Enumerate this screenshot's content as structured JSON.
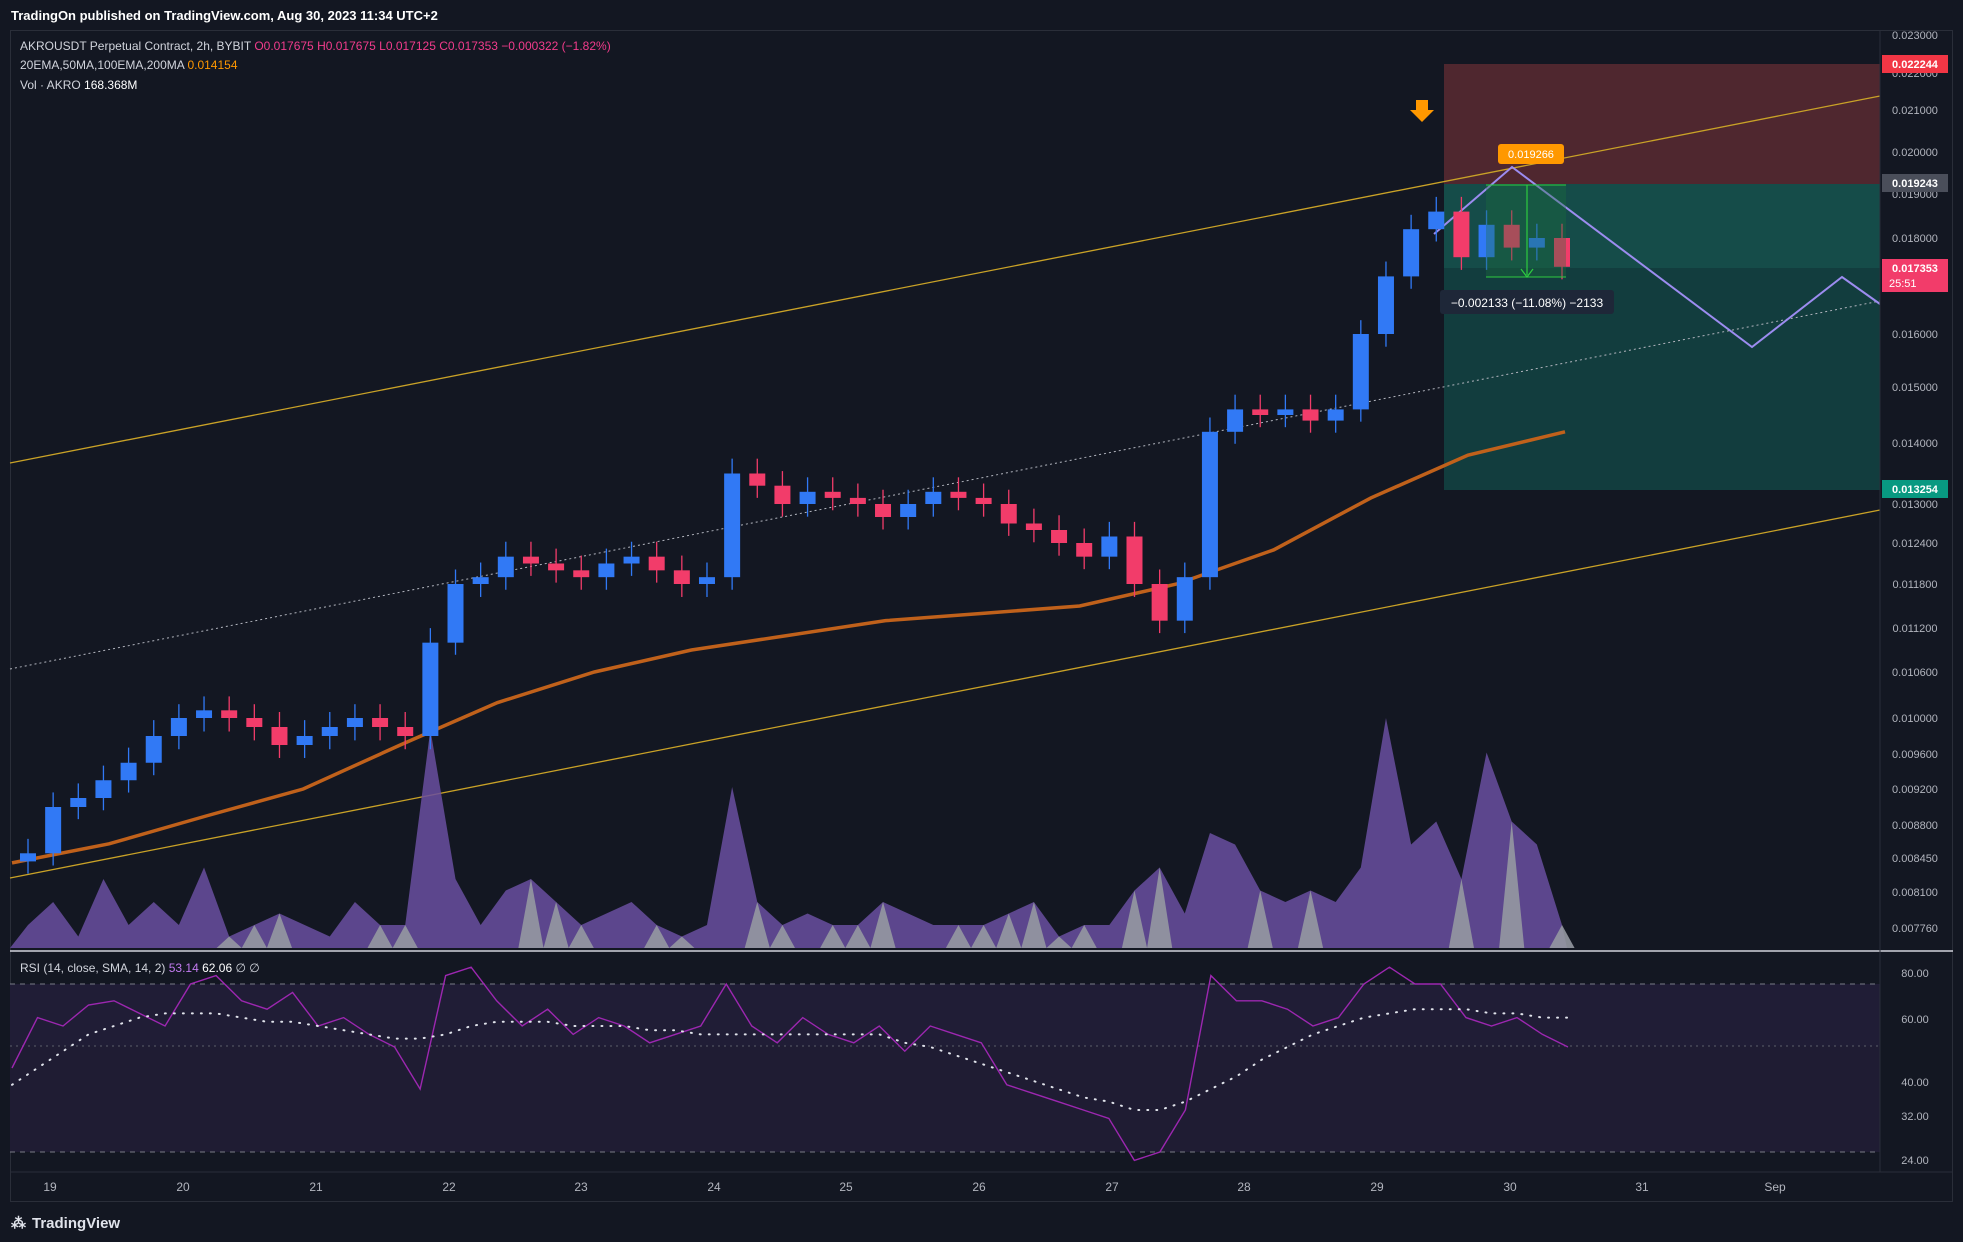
{
  "header": {
    "published": "TradingOn published on TradingView.com, Aug 30, 2023 11:34 UTC+2"
  },
  "legend": {
    "symbol": "AKROUSDT Perpetual Contract, 2h, BYBIT",
    "open": "O0.017675",
    "high": "H0.017675",
    "low": "L0.017125",
    "close": "C0.017353",
    "change": "−0.000322 (−1.82%)",
    "ma_label": "20EMA,50MA,100EMA,200MA",
    "ma_value": "0.014154",
    "vol_label": "Vol · AKRO",
    "vol_value": "168.368M"
  },
  "rsi_legend": {
    "label": "RSI (14, close, SMA, 14, 2)",
    "rsi": "53.14",
    "sma": "62.06",
    "extra": "∅  ∅"
  },
  "price_axis": [
    "0.023000",
    "0.022000",
    "0.021000",
    "0.020000",
    "0.019000",
    "0.018000",
    "0.016000",
    "0.015000",
    "0.014000",
    "0.013000",
    "0.012400",
    "0.011800",
    "0.011200",
    "0.010600",
    "0.010000",
    "0.009600",
    "0.009200",
    "0.008800",
    "0.008450",
    "0.008100",
    "0.007760"
  ],
  "price_tags": {
    "stop": "0.022244",
    "entry": "0.019243",
    "last": "0.017353",
    "countdown": "25:51",
    "target": "0.013254"
  },
  "annotations": {
    "high_label": "0.019266",
    "measure_label": "−0.002133 (−11.08%) −2133"
  },
  "rsi_axis": [
    "80.00",
    "60.00",
    "40.00",
    "32.00",
    "24.00"
  ],
  "time_axis": [
    "19",
    "20",
    "21",
    "22",
    "23",
    "24",
    "25",
    "26",
    "27",
    "28",
    "29",
    "30",
    "31",
    "Sep"
  ],
  "footer": {
    "brand": "TradingView"
  },
  "colors": {
    "bg": "#131722",
    "up": "#3179f5",
    "down": "#f23c6a",
    "ma": "#c0611b",
    "channel": "#c9a227",
    "stop_zone": "#5b2a31",
    "target_zone": "#123f40",
    "rsi": "#9c27b0"
  },
  "chart_data": {
    "type": "candlestick",
    "timeframe": "2h",
    "x_range": [
      "Aug 19",
      "Sep 1"
    ],
    "ylim": [
      0.0076,
      0.0232
    ],
    "candles_close_approx": [
      0.0085,
      0.009,
      0.0091,
      0.0093,
      0.0095,
      0.0098,
      0.01,
      0.0101,
      0.01,
      0.0099,
      0.0097,
      0.0098,
      0.0099,
      0.01,
      0.0099,
      0.0098,
      0.011,
      0.0118,
      0.0119,
      0.0122,
      0.0121,
      0.012,
      0.0119,
      0.0121,
      0.0122,
      0.012,
      0.0118,
      0.0119,
      0.0135,
      0.0133,
      0.013,
      0.0132,
      0.0131,
      0.013,
      0.0128,
      0.013,
      0.0132,
      0.0131,
      0.013,
      0.0127,
      0.0126,
      0.0124,
      0.0122,
      0.0125,
      0.0118,
      0.0113,
      0.0119,
      0.0142,
      0.0146,
      0.0145,
      0.0146,
      0.0144,
      0.0146,
      0.016,
      0.0172,
      0.0182,
      0.0186,
      0.0176,
      0.0183,
      0.0178,
      0.018,
      0.0174
    ],
    "ma_200_approx": [
      0.0084,
      0.0086,
      0.0089,
      0.0092,
      0.0097,
      0.0102,
      0.0106,
      0.0109,
      0.0111,
      0.0113,
      0.0114,
      0.0115,
      0.0118,
      0.0123,
      0.0131,
      0.0138,
      0.0142
    ],
    "position": {
      "stop": 0.022244,
      "entry": 0.019243,
      "target": 0.013254
    },
    "rsi": {
      "last": 53.14,
      "sma": 62.06,
      "ylim": [
        20,
        85
      ],
      "bands": [
        70,
        50,
        30
      ]
    }
  }
}
